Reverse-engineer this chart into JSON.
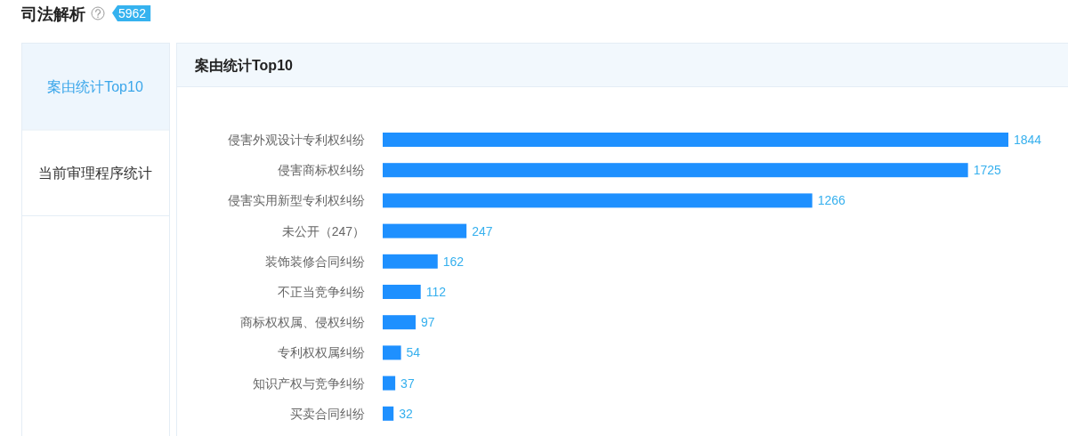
{
  "chart_data": {
    "type": "bar",
    "orientation": "horizontal",
    "title": "司法解析",
    "subtitle": "案由统计Top10",
    "annotations": [
      "5962",
      "案由统计Top10",
      "当前审理程序统计"
    ],
    "categories": [
      "侵害外观设计专利权纠纷",
      "侵害商标权纠纷",
      "侵害实用新型专利权纠纷",
      "未公开（247）",
      "装饰装修合同纠纷",
      "不正当竞争纠纷",
      "商标权权属、侵权纠纷",
      "专利权权属纠纷",
      "知识产权与竞争纠纷",
      "买卖合同纠纷"
    ],
    "values": [
      1844,
      1725,
      1266,
      247,
      162,
      112,
      97,
      54,
      37,
      32
    ],
    "color": "#1e90ff",
    "data_labels": true,
    "tick_labels": "y"
  }
}
